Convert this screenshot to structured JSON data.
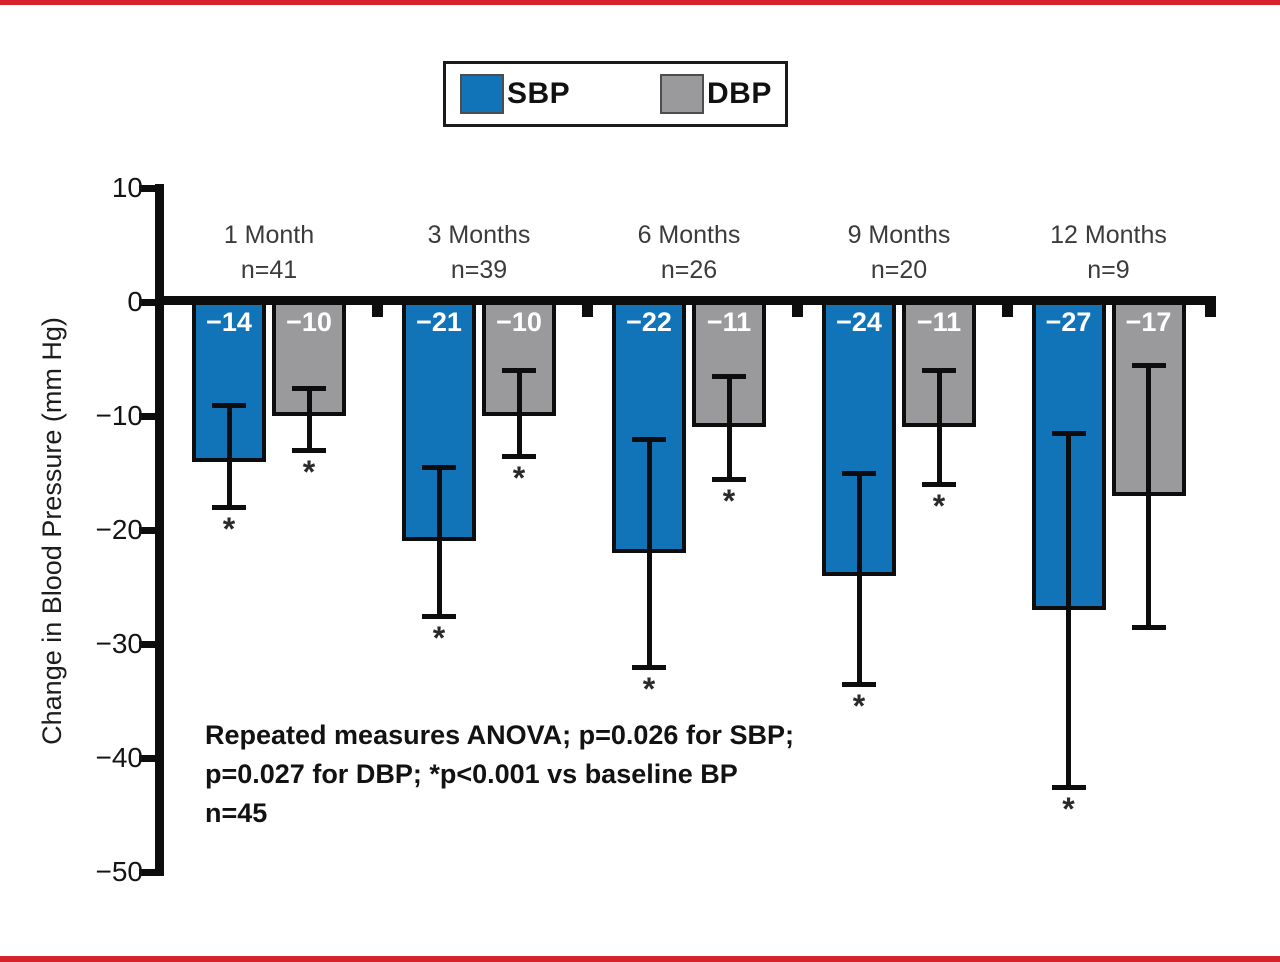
{
  "page": {
    "border_color": "#d6222b",
    "background": "#ffffff"
  },
  "legend": {
    "items": [
      {
        "name": "sbp-swatch",
        "label": "SBP",
        "color": "#1173b8"
      },
      {
        "name": "dbp-swatch",
        "label": "DBP",
        "color": "#9a9a9c"
      }
    ]
  },
  "chart_data": {
    "type": "bar",
    "title": "",
    "xlabel": "",
    "ylabel": "Change in Blood Pressure (mm Hg)",
    "ylim": [
      -50,
      10
    ],
    "yticks": [
      10,
      0,
      -10,
      -20,
      -30,
      -40,
      -50
    ],
    "grid": false,
    "legend_position": "top-center",
    "categories": [
      "1 Month",
      "3 Months",
      "6 Months",
      "9 Months",
      "12 Months"
    ],
    "group_n": [
      "n=41",
      "n=39",
      "n=26",
      "n=20",
      "n=9"
    ],
    "series": [
      {
        "name": "SBP",
        "color": "#1173b8",
        "values": [
          -14,
          -21,
          -22,
          -24,
          -27
        ],
        "error_high": [
          -9,
          -14.5,
          -12,
          -15,
          -11.5
        ],
        "error_low": [
          -18,
          -27.5,
          -32,
          -33.5,
          -42.5
        ],
        "significant": [
          true,
          true,
          true,
          true,
          true
        ]
      },
      {
        "name": "DBP",
        "color": "#9a9a9c",
        "values": [
          -10,
          -10,
          -11,
          -11,
          -17
        ],
        "error_high": [
          -7.5,
          -6,
          -6.5,
          -6,
          -5.5
        ],
        "error_low": [
          -13,
          -13.5,
          -15.5,
          -16,
          -28.5
        ],
        "significant": [
          true,
          true,
          true,
          true,
          false
        ]
      }
    ],
    "significance_marker": "*",
    "annotation": [
      "Repeated measures ANOVA; p=0.026 for SBP;",
      "p=0.027 for DBP; *p<0.001 vs baseline BP",
      "n=45"
    ]
  }
}
